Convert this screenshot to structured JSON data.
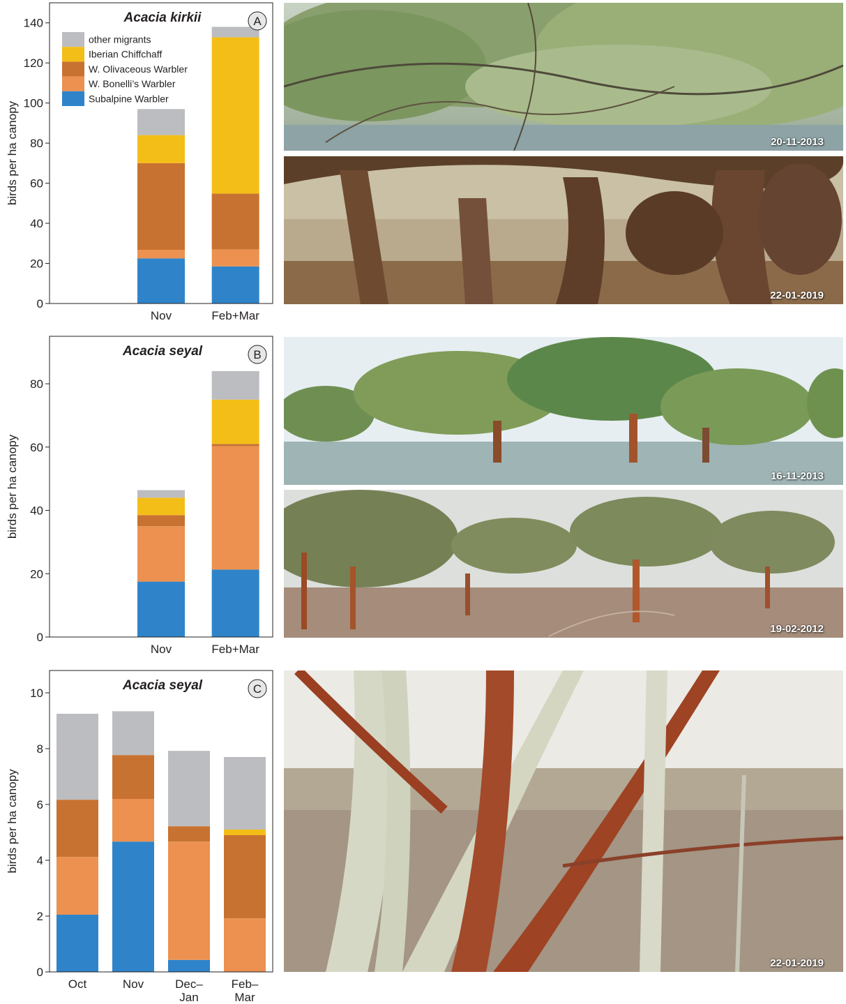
{
  "colors": {
    "other_migrants": "#bcbdc0",
    "iberian_chiffchaff": "#f3be17",
    "w_olivaceous_warbler": "#c87231",
    "w_bonellis_warbler": "#ec9150",
    "subalpine_warbler": "#2f84c9"
  },
  "legend": [
    {
      "key": "other_migrants",
      "label": "other migrants"
    },
    {
      "key": "iberian_chiffchaff",
      "label": "Iberian Chiffchaff"
    },
    {
      "key": "w_olivaceous_warbler",
      "label": "W. Olivaceous Warbler"
    },
    {
      "key": "w_bonellis_warbler",
      "label": "W. Bonelli’s Warbler"
    },
    {
      "key": "subalpine_warbler",
      "label": "Subalpine Warbler"
    }
  ],
  "chart_data": [
    {
      "type": "bar",
      "stacked": true,
      "panel_letter": "A",
      "title": "Acacia kirkii",
      "ylabel": "birds per ha canopy",
      "ylim": [
        0,
        150
      ],
      "yticks": [
        0,
        20,
        40,
        60,
        80,
        100,
        120,
        140
      ],
      "legend_position": "top-left",
      "slots": 3,
      "bar_slots": [
        1,
        2
      ],
      "categories": [
        [
          "Nov"
        ],
        [
          "Feb+Mar"
        ]
      ],
      "series": [
        {
          "key": "subalpine_warbler",
          "name": "Subalpine Warbler",
          "values": [
            22.5,
            18.5
          ]
        },
        {
          "key": "w_bonellis_warbler",
          "name": "W. Bonelli’s Warbler",
          "values": [
            4.3,
            8.5
          ]
        },
        {
          "key": "w_olivaceous_warbler",
          "name": "W. Olivaceous Warbler",
          "values": [
            43.2,
            27.8
          ]
        },
        {
          "key": "iberian_chiffchaff",
          "name": "Iberian Chiffchaff",
          "values": [
            14.0,
            78.0
          ]
        },
        {
          "key": "other_migrants",
          "name": "other migrants",
          "values": [
            13.0,
            5.2
          ]
        }
      ]
    },
    {
      "type": "bar",
      "stacked": true,
      "panel_letter": "B",
      "title": "Acacia seyal",
      "ylabel": "birds per ha canopy",
      "ylim": [
        0,
        95
      ],
      "yticks": [
        0,
        20,
        40,
        60,
        80
      ],
      "slots": 3,
      "bar_slots": [
        1,
        2
      ],
      "categories": [
        [
          "Nov"
        ],
        [
          "Feb+Mar"
        ]
      ],
      "series": [
        {
          "key": "subalpine_warbler",
          "name": "Subalpine Warbler",
          "values": [
            17.5,
            21.3
          ]
        },
        {
          "key": "w_bonellis_warbler",
          "name": "W. Bonelli’s Warbler",
          "values": [
            17.5,
            39.0
          ]
        },
        {
          "key": "w_olivaceous_warbler",
          "name": "W. Olivaceous Warbler",
          "values": [
            3.5,
            0.7
          ]
        },
        {
          "key": "iberian_chiffchaff",
          "name": "Iberian Chiffchaff",
          "values": [
            5.5,
            14.0
          ]
        },
        {
          "key": "other_migrants",
          "name": "other migrants",
          "values": [
            2.4,
            9.0
          ]
        }
      ]
    },
    {
      "type": "bar",
      "stacked": true,
      "panel_letter": "C",
      "title": "Acacia seyal",
      "ylabel": "birds per ha canopy",
      "ylim": [
        0,
        10.8
      ],
      "yticks": [
        0,
        2,
        4,
        6,
        8,
        10
      ],
      "slots": 4,
      "bar_slots": [
        0,
        1,
        2,
        3
      ],
      "categories": [
        [
          "Oct"
        ],
        [
          "Nov"
        ],
        [
          "Dec–",
          "Jan"
        ],
        [
          "Feb–",
          "Mar"
        ]
      ],
      "series": [
        {
          "key": "subalpine_warbler",
          "name": "Subalpine Warbler",
          "values": [
            2.05,
            4.67,
            0.43,
            0
          ]
        },
        {
          "key": "w_bonellis_warbler",
          "name": "W. Bonelli’s Warbler",
          "values": [
            2.07,
            1.53,
            4.24,
            1.92
          ]
        },
        {
          "key": "w_olivaceous_warbler",
          "name": "W. Olivaceous Warbler",
          "values": [
            2.05,
            1.57,
            0.55,
            2.98
          ]
        },
        {
          "key": "iberian_chiffchaff",
          "name": "Iberian Chiffchaff",
          "values": [
            0,
            0,
            0,
            0.2
          ]
        },
        {
          "key": "other_migrants",
          "name": "other migrants",
          "values": [
            3.08,
            1.57,
            2.7,
            2.6
          ]
        }
      ]
    }
  ],
  "photos": [
    {
      "scene": "flooded-acacia-kirkii-canopy",
      "date": "20-11-2013"
    },
    {
      "scene": "dry-acacia-kirkii-trunks",
      "date": "22-01-2019"
    },
    {
      "scene": "flooded-acacia-seyal-woodland",
      "date": "16-11-2013"
    },
    {
      "scene": "dry-acacia-seyal-woodland",
      "date": "19-02-2012"
    },
    {
      "scene": "acacia-seyal-bark-closeup",
      "date": "22-01-2019"
    }
  ]
}
